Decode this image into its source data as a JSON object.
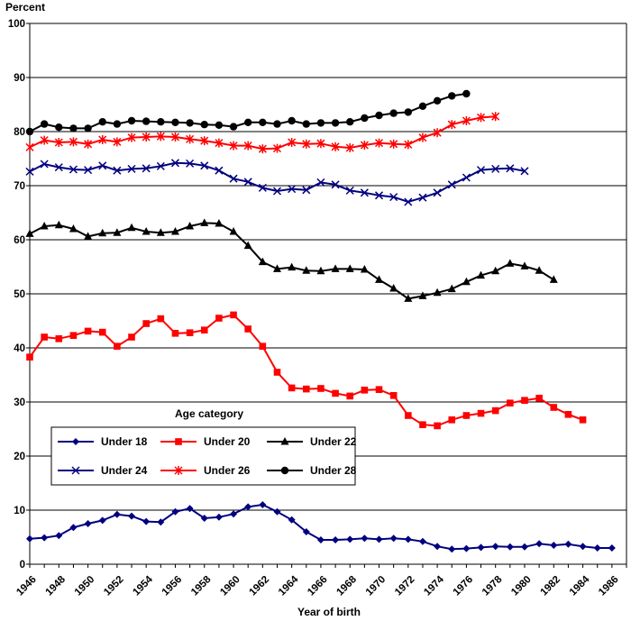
{
  "chart_data": {
    "type": "line",
    "ylabel": "Percent",
    "xlabel": "Year of birth",
    "ylim": [
      0,
      100
    ],
    "yticks": [
      0,
      10,
      20,
      30,
      40,
      50,
      60,
      70,
      80,
      90,
      100
    ],
    "xlim": [
      1946,
      1987
    ],
    "xtick_labels": [
      "1946",
      "1948",
      "1950",
      "1952",
      "1954",
      "1956",
      "1958",
      "1960",
      "1962",
      "1964",
      "1966",
      "1968",
      "1970",
      "1972",
      "1974",
      "1976",
      "1978",
      "1980",
      "1982",
      "1984",
      "1986"
    ],
    "grid": "horizontal",
    "legend": {
      "title": "Age category",
      "placement": "center-left",
      "labels": [
        "Under 18",
        "Under 20",
        "Under 22",
        "Under 24",
        "Under 26",
        "Under 28"
      ]
    },
    "series": [
      {
        "name": "Under 18",
        "color": "#00007f",
        "marker": "diamond",
        "start_year": 1946,
        "values": [
          4.7,
          4.9,
          5.3,
          6.8,
          7.5,
          8.1,
          9.2,
          8.9,
          7.9,
          7.8,
          9.7,
          10.3,
          8.5,
          8.7,
          9.3,
          10.6,
          11.0,
          9.7,
          8.2,
          6.0,
          4.5,
          4.5,
          4.6,
          4.8,
          4.6,
          4.8,
          4.6,
          4.2,
          3.3,
          2.8,
          2.9,
          3.1,
          3.3,
          3.2,
          3.2,
          3.8,
          3.5,
          3.7,
          3.3,
          3.0,
          3.0
        ]
      },
      {
        "name": "Under 20",
        "color": "#ff0000",
        "marker": "square",
        "start_year": 1946,
        "values": [
          38.3,
          42.0,
          41.7,
          42.3,
          43.1,
          42.9,
          40.3,
          42.0,
          44.5,
          45.4,
          42.7,
          42.8,
          43.3,
          45.5,
          46.1,
          43.5,
          40.3,
          35.5,
          32.6,
          32.4,
          32.5,
          31.6,
          31.1,
          32.2,
          32.3,
          31.2,
          27.5,
          25.8,
          25.6,
          26.7,
          27.5,
          27.9,
          28.4,
          29.8,
          30.3,
          30.7,
          29.0,
          27.7,
          26.7
        ]
      },
      {
        "name": "Under 22",
        "color": "#000000",
        "marker": "triangle",
        "start_year": 1946,
        "values": [
          61.1,
          62.5,
          62.7,
          62.0,
          60.6,
          61.2,
          61.3,
          62.2,
          61.5,
          61.3,
          61.5,
          62.5,
          63.1,
          63.0,
          61.5,
          58.9,
          55.9,
          54.6,
          54.9,
          54.3,
          54.2,
          54.6,
          54.6,
          54.5,
          52.6,
          51.0,
          49.1,
          49.6,
          50.2,
          50.9,
          52.2,
          53.4,
          54.2,
          55.6,
          55.1,
          54.3,
          52.6
        ]
      },
      {
        "name": "Under 24",
        "color": "#00007f",
        "marker": "x",
        "start_year": 1946,
        "values": [
          72.6,
          74.0,
          73.4,
          73.0,
          72.9,
          73.7,
          72.8,
          73.1,
          73.2,
          73.6,
          74.2,
          74.1,
          73.7,
          72.8,
          71.3,
          70.7,
          69.6,
          69.0,
          69.4,
          69.2,
          70.6,
          70.2,
          69.1,
          68.7,
          68.2,
          67.9,
          67.0,
          67.8,
          68.7,
          70.2,
          71.5,
          72.9,
          73.1,
          73.2,
          72.7
        ]
      },
      {
        "name": "Under 26",
        "color": "#ff0000",
        "marker": "star",
        "start_year": 1946,
        "values": [
          77.1,
          78.4,
          78.0,
          78.1,
          77.7,
          78.5,
          78.1,
          78.9,
          79.0,
          79.1,
          79.0,
          78.6,
          78.3,
          77.9,
          77.4,
          77.4,
          76.8,
          76.9,
          78.0,
          77.7,
          77.8,
          77.2,
          77.0,
          77.5,
          77.9,
          77.7,
          77.6,
          78.9,
          79.8,
          81.3,
          82.0,
          82.6,
          82.8
        ]
      },
      {
        "name": "Under 28",
        "color": "#000000",
        "marker": "circle",
        "start_year": 1946,
        "values": [
          80.0,
          81.4,
          80.8,
          80.6,
          80.6,
          81.8,
          81.4,
          82.0,
          81.9,
          81.8,
          81.7,
          81.6,
          81.3,
          81.2,
          80.9,
          81.7,
          81.7,
          81.4,
          82.0,
          81.4,
          81.6,
          81.6,
          81.8,
          82.5,
          83.0,
          83.4,
          83.6,
          84.7,
          85.7,
          86.6,
          87.0
        ]
      }
    ]
  }
}
